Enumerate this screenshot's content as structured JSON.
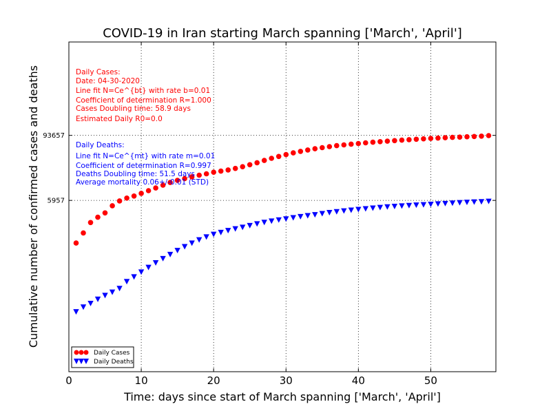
{
  "chart_data": {
    "type": "scatter",
    "title": "COVID-19 in Iran starting March spanning ['March', 'April']",
    "xlabel": "Time: days since start of March spanning ['March', 'April']",
    "ylabel": "Cumulative number of confirmed cases and deaths",
    "xlim": [
      0,
      59
    ],
    "x_ticks": [
      "0",
      "10",
      "20",
      "30",
      "40",
      "50"
    ],
    "y_ticks": [
      "5957",
      "93657"
    ],
    "grid": true,
    "legend_position": "bottom-left",
    "series": [
      {
        "name": "Daily Cases",
        "color": "#ff0000",
        "marker": "circle",
        "x": [
          1,
          2,
          3,
          4,
          5,
          6,
          7,
          8,
          9,
          10,
          11,
          12,
          13,
          14,
          15,
          16,
          17,
          18,
          19,
          20,
          21,
          22,
          23,
          24,
          25,
          26,
          27,
          28,
          29,
          30,
          31,
          32,
          33,
          34,
          35,
          36,
          37,
          38,
          39,
          40,
          41,
          42,
          43,
          44,
          45,
          46,
          47,
          48,
          49,
          50,
          51,
          52,
          53,
          54,
          55,
          56,
          57,
          58
        ],
        "y": [
          978,
          1501,
          2336,
          2922,
          3513,
          4747,
          5823,
          6566,
          7161,
          8042,
          9000,
          10075,
          11364,
          12729,
          13938,
          14991,
          16169,
          17361,
          18407,
          19644,
          20610,
          21638,
          23049,
          24811,
          27017,
          29406,
          32332,
          35408,
          38309,
          41495,
          44605,
          47593,
          50468,
          53183,
          55743,
          58226,
          60500,
          62589,
          64586,
          66220,
          68192,
          70029,
          71686,
          73303,
          74877,
          76389,
          77995,
          79494,
          80868,
          82211,
          83505,
          84802,
          85996,
          87026,
          88194,
          89328,
          90481,
          92584
        ]
      },
      {
        "name": "Daily Deaths",
        "color": "#0000ff",
        "marker": "triangle-down",
        "x": [
          1,
          2,
          3,
          4,
          5,
          6,
          7,
          8,
          9,
          10,
          11,
          12,
          13,
          14,
          15,
          16,
          17,
          18,
          19,
          20,
          21,
          22,
          23,
          24,
          25,
          26,
          27,
          28,
          29,
          30,
          31,
          32,
          33,
          34,
          35,
          36,
          37,
          38,
          39,
          40,
          41,
          42,
          43,
          44,
          45,
          46,
          47,
          48,
          49,
          50,
          51,
          52,
          53,
          54,
          55,
          56,
          57,
          58
        ],
        "y": [
          54,
          66,
          77,
          92,
          108,
          124,
          145,
          194,
          237,
          291,
          354,
          429,
          514,
          611,
          724,
          853,
          988,
          1135,
          1284,
          1433,
          1556,
          1685,
          1812,
          1934,
          2077,
          2234,
          2378,
          2517,
          2640,
          2757,
          2898,
          3036,
          3160,
          3294,
          3452,
          3603,
          3739,
          3872,
          3993,
          4110,
          4232,
          4357,
          4474,
          4585,
          4683,
          4777,
          4869,
          4958,
          5031,
          5118,
          5209,
          5297,
          5391,
          5481,
          5574,
          5650,
          5710,
          5806
        ]
      }
    ],
    "annotations": {
      "cases": {
        "color": "#ff0000",
        "lines": [
          "Daily Cases:",
          "Date: 04-30-2020",
          "Line fit N=Ce^{bt} with rate b=0.01",
          "Coefficient of determination R=1.000",
          "Cases Doubling time: 58.9 days",
          "Estimated Daily R0=0.0"
        ]
      },
      "deaths": {
        "color": "#0000ff",
        "lines": [
          "Daily Deaths:",
          "Line fit N=Ce^{mt} with rate m=0.01",
          "Coefficient of determination R=0.997",
          "Deaths Doubling time: 51.5 days",
          "Average mortality 0.06+/-0.01 (STD)"
        ]
      }
    }
  }
}
